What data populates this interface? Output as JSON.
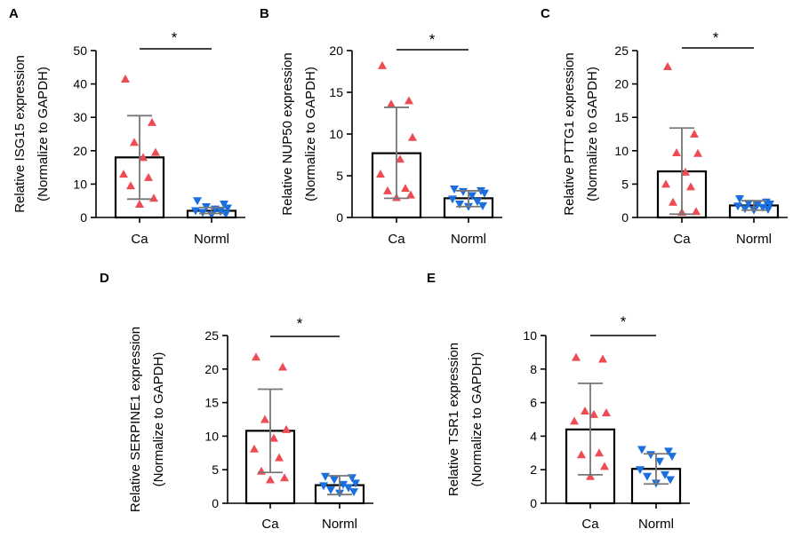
{
  "chart_data": [
    {
      "type": "bar",
      "panel": "A",
      "ylabel": [
        "Relative ISG15 expression",
        "(Normalize to GAPDH)"
      ],
      "ylim": [
        0,
        50
      ],
      "yticks": [
        0,
        10,
        20,
        30,
        40,
        50
      ],
      "categories": [
        "Ca",
        "Norml"
      ],
      "values": [
        18,
        2
      ],
      "error": [
        [
          5.5,
          30.5
        ],
        [
          1.2,
          3.0
        ]
      ],
      "points": [
        [
          41.5,
          28.5,
          22.5,
          19.5,
          18,
          13,
          12,
          9.5,
          5.8,
          4
        ],
        [
          5,
          4,
          3.2,
          2.8,
          2.5,
          2,
          1.8,
          1.5,
          1,
          0.8
        ]
      ],
      "significance": "*",
      "colors": {
        "Ca": "#ef4b55",
        "Norml": "#1a6fe0"
      }
    },
    {
      "type": "bar",
      "panel": "B",
      "ylabel": [
        "Relative NUP50 expression",
        "(Normalize to GAPDH)"
      ],
      "ylim": [
        0,
        20
      ],
      "yticks": [
        0,
        5,
        10,
        15,
        20
      ],
      "categories": [
        "Ca",
        "Norml"
      ],
      "values": [
        7.7,
        2.3
      ],
      "error": [
        [
          2.3,
          13.2
        ],
        [
          1.3,
          3.2
        ]
      ],
      "points": [
        [
          18.2,
          14,
          13.6,
          9.6,
          7,
          5.2,
          3.5,
          3.2,
          2.7,
          2.4
        ],
        [
          3.4,
          3.2,
          3.1,
          2.9,
          2.6,
          2.2,
          1.9,
          1.6,
          1.4,
          1.3
        ]
      ],
      "significance": "*",
      "colors": {
        "Ca": "#ef4b55",
        "Norml": "#1a6fe0"
      }
    },
    {
      "type": "bar",
      "panel": "C",
      "ylabel": [
        "Relative PTTG1 expression",
        "(Normalize to GAPDH)"
      ],
      "ylim": [
        0,
        25
      ],
      "yticks": [
        0,
        5,
        10,
        15,
        20,
        25
      ],
      "categories": [
        "Ca",
        "Norml"
      ],
      "values": [
        6.9,
        1.8
      ],
      "error": [
        [
          0.5,
          13.4
        ],
        [
          1.1,
          2.5
        ]
      ],
      "points": [
        [
          22.6,
          12.5,
          9.7,
          9.6,
          6.8,
          5,
          4.6,
          2.3,
          0.9,
          0.8
        ],
        [
          2.8,
          2.3,
          2.1,
          2,
          1.9,
          1.7,
          1.5,
          1.3,
          1.2,
          1.1
        ]
      ],
      "significance": "*",
      "colors": {
        "Ca": "#ef4b55",
        "Norml": "#1a6fe0"
      }
    },
    {
      "type": "bar",
      "panel": "D",
      "ylabel": [
        "Relative SERPINE1 expression",
        "(Normalize to GAPDH)"
      ],
      "ylim": [
        0,
        25
      ],
      "yticks": [
        0,
        5,
        10,
        15,
        20,
        25
      ],
      "categories": [
        "Ca",
        "Norml"
      ],
      "values": [
        10.8,
        2.7
      ],
      "error": [
        [
          4.6,
          17
        ],
        [
          1.3,
          4.1
        ]
      ],
      "points": [
        [
          21.8,
          20.3,
          12.5,
          11,
          9.7,
          8.1,
          6.8,
          4.8,
          3.8,
          3.5
        ],
        [
          4,
          3.8,
          3.5,
          3,
          2.8,
          2.6,
          2.3,
          2,
          1.7,
          1.5
        ]
      ],
      "significance": "*",
      "colors": {
        "Ca": "#ef4b55",
        "Norml": "#1a6fe0"
      }
    },
    {
      "type": "bar",
      "panel": "E",
      "ylabel": [
        "Relative TSR1 expression",
        "(Normalize to GAPDH)"
      ],
      "ylim": [
        0,
        10
      ],
      "yticks": [
        0,
        2,
        4,
        6,
        8,
        10
      ],
      "categories": [
        "Ca",
        "Norml"
      ],
      "values": [
        4.4,
        2.05
      ],
      "error": [
        [
          1.7,
          7.15
        ],
        [
          1.15,
          2.95
        ]
      ],
      "points": [
        [
          8.7,
          8.6,
          5.5,
          5.4,
          5.3,
          4.9,
          3,
          2.9,
          2.2,
          1.6
        ],
        [
          3.2,
          3.1,
          2.9,
          2.8,
          2.5,
          2,
          1.7,
          1.6,
          1.4,
          1.2
        ]
      ],
      "significance": "*",
      "colors": {
        "Ca": "#ef4b55",
        "Norml": "#1a6fe0"
      }
    }
  ]
}
